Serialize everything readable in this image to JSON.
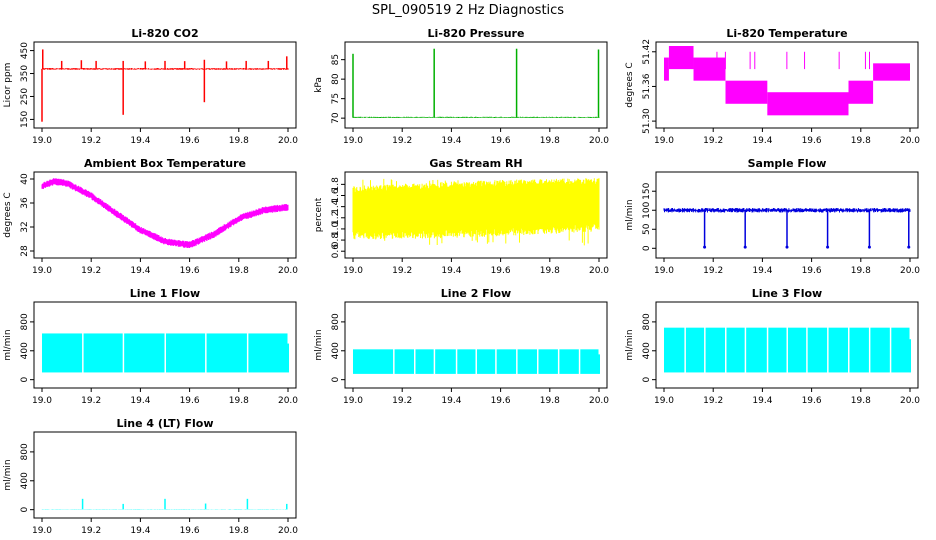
{
  "figure": {
    "title": "SPL_090519  2 Hz Diagnostics"
  },
  "chart_data": [
    {
      "type": "line",
      "title": "Li-820 CO2",
      "xlabel": "",
      "ylabel": "Licor ppm",
      "xlim": [
        19.0,
        20.0
      ],
      "ylim": [
        130,
        470
      ],
      "x_ticks": [
        "19.0",
        "19.2",
        "19.4",
        "19.6",
        "19.8",
        "20.0"
      ],
      "y_ticks": [
        "150",
        "250",
        "350",
        "450"
      ],
      "color": "#ff0000",
      "series": [
        {
          "baseline": 370,
          "noise": 4,
          "spikes": [
            {
              "x": 19.0,
              "y": 140
            },
            {
              "x": 19.003,
              "y": 455
            },
            {
              "x": 19.08,
              "y": 405
            },
            {
              "x": 19.16,
              "y": 408
            },
            {
              "x": 19.22,
              "y": 405
            },
            {
              "x": 19.33,
              "y": 170
            },
            {
              "x": 19.33,
              "y": 405
            },
            {
              "x": 19.42,
              "y": 403
            },
            {
              "x": 19.5,
              "y": 405
            },
            {
              "x": 19.58,
              "y": 404
            },
            {
              "x": 19.66,
              "y": 225
            },
            {
              "x": 19.66,
              "y": 410
            },
            {
              "x": 19.75,
              "y": 403
            },
            {
              "x": 19.83,
              "y": 405
            },
            {
              "x": 19.92,
              "y": 405
            },
            {
              "x": 19.995,
              "y": 425
            }
          ]
        }
      ]
    },
    {
      "type": "line",
      "title": "Li-820 Pressure",
      "xlabel": "",
      "ylabel": "kPa",
      "xlim": [
        19.0,
        20.0
      ],
      "ylim": [
        68.5,
        88.5
      ],
      "x_ticks": [
        "19.0",
        "19.2",
        "19.4",
        "19.6",
        "19.8",
        "20.0"
      ],
      "y_ticks": [
        "70",
        "75",
        "80",
        "85"
      ],
      "color": "#00b000",
      "series": [
        {
          "baseline": 70.2,
          "noise": 0.15,
          "spikes": [
            {
              "x": 19.0,
              "y": 86.5
            },
            {
              "x": 19.33,
              "y": 87.8
            },
            {
              "x": 19.665,
              "y": 87.8
            },
            {
              "x": 19.998,
              "y": 87.6
            }
          ]
        }
      ]
    },
    {
      "type": "line",
      "title": "Li-820 Temperature",
      "xlabel": "",
      "ylabel": "degrees C",
      "xlim": [
        19.0,
        20.0
      ],
      "ylim": [
        51.295,
        51.43
      ],
      "x_ticks": [
        "19.0",
        "19.2",
        "19.4",
        "19.6",
        "19.8",
        "20.0"
      ],
      "y_ticks": [
        "51.30",
        "51.36",
        "51.42"
      ],
      "color": "#ff00ff",
      "series": [
        {
          "steps": [
            {
              "x0": 19.0,
              "x1": 19.02,
              "lo": 51.37,
              "hi": 51.41
            },
            {
              "x0": 19.02,
              "x1": 19.12,
              "lo": 51.39,
              "hi": 51.43
            },
            {
              "x0": 19.12,
              "x1": 19.25,
              "lo": 51.37,
              "hi": 51.41
            },
            {
              "x0": 19.25,
              "x1": 19.42,
              "lo": 51.33,
              "hi": 51.37
            },
            {
              "x0": 19.42,
              "x1": 19.75,
              "lo": 51.31,
              "hi": 51.35
            },
            {
              "x0": 19.75,
              "x1": 19.85,
              "lo": 51.33,
              "hi": 51.37
            },
            {
              "x0": 19.85,
              "x1": 20.0,
              "lo": 51.37,
              "hi": 51.4
            }
          ]
        }
      ]
    },
    {
      "type": "line",
      "title": "Ambient Box Temperature",
      "xlabel": "",
      "ylabel": "degrees C",
      "xlim": [
        19.0,
        20.0
      ],
      "ylim": [
        27.5,
        40.5
      ],
      "x_ticks": [
        "19.0",
        "19.2",
        "19.4",
        "19.6",
        "19.8",
        "20.0"
      ],
      "y_ticks": [
        "28",
        "32",
        "36",
        "40"
      ],
      "color": "#ff00ff",
      "series": [
        {
          "curve": [
            {
              "x": 19.0,
              "y": 38.8
            },
            {
              "x": 19.05,
              "y": 39.6
            },
            {
              "x": 19.1,
              "y": 39.3
            },
            {
              "x": 19.2,
              "y": 37.2
            },
            {
              "x": 19.3,
              "y": 34.3
            },
            {
              "x": 19.4,
              "y": 31.5
            },
            {
              "x": 19.5,
              "y": 29.6
            },
            {
              "x": 19.6,
              "y": 29.0
            },
            {
              "x": 19.7,
              "y": 30.8
            },
            {
              "x": 19.8,
              "y": 33.4
            },
            {
              "x": 19.9,
              "y": 34.8
            },
            {
              "x": 20.0,
              "y": 35.3
            }
          ],
          "noise": 0.6
        }
      ]
    },
    {
      "type": "area",
      "title": "Gas Stream RH",
      "xlabel": "",
      "ylabel": "percent",
      "xlim": [
        19.0,
        20.0
      ],
      "ylim": [
        0.55,
        1.95
      ],
      "x_ticks": [
        "19.0",
        "19.2",
        "19.4",
        "19.6",
        "19.8",
        "20.0"
      ],
      "y_ticks": [
        "0.6",
        "0.8",
        "1.0",
        "1.2",
        "1.4",
        "1.6",
        "1.8"
      ],
      "color": "#ffff00",
      "series": [
        {
          "band": [
            {
              "x": 19.0,
              "lo": 0.95,
              "hi": 1.65
            },
            {
              "x": 19.5,
              "lo": 1.0,
              "hi": 1.75
            },
            {
              "x": 20.0,
              "lo": 1.1,
              "hi": 1.8
            }
          ],
          "min": 0.7,
          "max": 1.9
        }
      ]
    },
    {
      "type": "line",
      "title": "Sample Flow",
      "xlabel": "",
      "ylabel": "ml/min",
      "xlim": [
        19.0,
        20.0
      ],
      "ylim": [
        -15,
        190
      ],
      "x_ticks": [
        "19.0",
        "19.2",
        "19.4",
        "19.6",
        "19.8",
        "20.0"
      ],
      "y_ticks": [
        "0",
        "50",
        "100",
        "150"
      ],
      "color": "#0000dd",
      "series": [
        {
          "baseline": 100,
          "noise": 6,
          "dips": [
            19.165,
            19.33,
            19.5,
            19.665,
            19.835,
            19.995
          ],
          "dip_to": 3
        }
      ]
    },
    {
      "type": "area",
      "title": "Line 1 Flow",
      "xlabel": "",
      "ylabel": "ml/min",
      "xlim": [
        19.0,
        20.0
      ],
      "ylim": [
        -60,
        1020
      ],
      "x_ticks": [
        "19.0",
        "19.2",
        "19.4",
        "19.6",
        "19.8",
        "20.0"
      ],
      "y_ticks": [
        "0",
        "400",
        "800"
      ],
      "color": "#00ffff",
      "series": [
        {
          "lo": 100,
          "hi": 640,
          "gaps": [
            19.165,
            19.33,
            19.5,
            19.665,
            19.835
          ],
          "tail": 500
        }
      ]
    },
    {
      "type": "area",
      "title": "Line 2 Flow",
      "xlabel": "",
      "ylabel": "ml/min",
      "xlim": [
        19.0,
        20.0
      ],
      "ylim": [
        -60,
        1020
      ],
      "x_ticks": [
        "19.0",
        "19.2",
        "19.4",
        "19.6",
        "19.8",
        "20.0"
      ],
      "y_ticks": [
        "0",
        "400",
        "800"
      ],
      "color": "#00ffff",
      "series": [
        {
          "lo": 80,
          "hi": 420,
          "gaps": [
            19.165,
            19.25,
            19.33,
            19.42,
            19.5,
            19.58,
            19.665,
            19.75,
            19.835,
            19.92
          ],
          "tail": 350
        }
      ]
    },
    {
      "type": "area",
      "title": "Line 3 Flow",
      "xlabel": "",
      "ylabel": "ml/min",
      "xlim": [
        19.0,
        20.0
      ],
      "ylim": [
        -60,
        1020
      ],
      "x_ticks": [
        "19.0",
        "19.2",
        "19.4",
        "19.6",
        "19.8",
        "20.0"
      ],
      "y_ticks": [
        "0",
        "400",
        "800"
      ],
      "color": "#00ffff",
      "series": [
        {
          "lo": 100,
          "hi": 720,
          "gaps": [
            19.085,
            19.165,
            19.25,
            19.33,
            19.42,
            19.5,
            19.58,
            19.665,
            19.75,
            19.835,
            19.92
          ],
          "tail": 560
        }
      ]
    },
    {
      "type": "line",
      "title": "Line 4 (LT) Flow",
      "xlabel": "",
      "ylabel": "ml/min",
      "xlim": [
        19.0,
        20.0
      ],
      "ylim": [
        -60,
        1020
      ],
      "x_ticks": [
        "19.0",
        "19.2",
        "19.4",
        "19.6",
        "19.8",
        "20.0"
      ],
      "y_ticks": [
        "0",
        "400",
        "800"
      ],
      "color": "#00ffff",
      "series": [
        {
          "baseline": 5,
          "noise": 3,
          "spikes": [
            {
              "x": 19.165,
              "y": 150
            },
            {
              "x": 19.33,
              "y": 80
            },
            {
              "x": 19.5,
              "y": 150
            },
            {
              "x": 19.665,
              "y": 85
            },
            {
              "x": 19.835,
              "y": 150
            },
            {
              "x": 19.995,
              "y": 80
            }
          ]
        }
      ]
    }
  ]
}
